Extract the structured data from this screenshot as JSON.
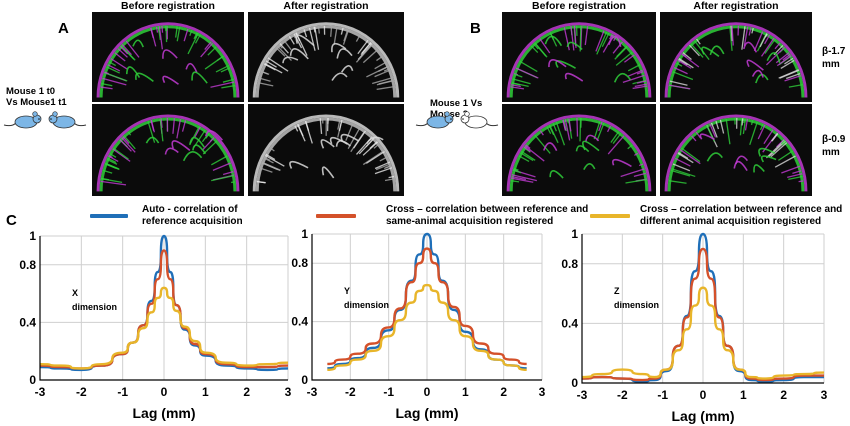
{
  "panels": {
    "a": {
      "letter": "A",
      "before_title": "Before registration",
      "after_title": "After registration",
      "comparison_line1": "Mouse 1 t0",
      "comparison_line2": "Vs Mouse1 t1"
    },
    "b": {
      "letter": "B",
      "before_title": "Before registration",
      "after_title": "After registration",
      "comparison_line1": "Mouse 1 Vs",
      "comparison_line2": "Mouse 2",
      "beta_top_line1": "β-1.7",
      "beta_top_line2": "mm",
      "beta_bottom_line1": "β-0.9",
      "beta_bottom_line2": "mm"
    },
    "c": {
      "letter": "C"
    }
  },
  "legend": [
    {
      "line1": "Auto - correlation of",
      "line2": "reference acquisition",
      "color": "#1f6fb8"
    },
    {
      "line1": "Cross – correlation between reference and",
      "line2": "same-animal acquisition registered",
      "color": "#d4512a"
    },
    {
      "line1": "Cross – correlation between reference and",
      "line2": "different animal acquisition registered",
      "color": "#e8b52a"
    }
  ],
  "colors": {
    "magenta": "#c23bd4",
    "green": "#2fcf3a",
    "grid": "#cfcfcf"
  },
  "chart_data": [
    {
      "type": "line",
      "dimension_line1": "X",
      "dimension_line2": "dimension",
      "xlabel": "Lag (mm)",
      "xlim": [
        -3,
        3
      ],
      "ylim": [
        0,
        1
      ],
      "xticks": [
        "-3",
        "-2",
        "-1",
        "0",
        "1",
        "2",
        "3"
      ],
      "yticks": [
        "0",
        "0.4",
        "0.8",
        "1"
      ],
      "x": [
        -3,
        -2.5,
        -2,
        -1.5,
        -1,
        -0.75,
        -0.5,
        -0.3,
        -0.15,
        0,
        0.15,
        0.3,
        0.5,
        0.75,
        1,
        1.5,
        2,
        2.5,
        3
      ],
      "series": [
        {
          "color": "#1f6fb8",
          "values": [
            0.09,
            0.08,
            0.07,
            0.1,
            0.18,
            0.26,
            0.38,
            0.55,
            0.75,
            1.0,
            0.75,
            0.52,
            0.35,
            0.24,
            0.17,
            0.1,
            0.08,
            0.07,
            0.08
          ]
        },
        {
          "color": "#d4512a",
          "values": [
            0.1,
            0.09,
            0.08,
            0.1,
            0.18,
            0.26,
            0.38,
            0.53,
            0.7,
            0.9,
            0.7,
            0.52,
            0.36,
            0.25,
            0.18,
            0.11,
            0.09,
            0.09,
            0.1
          ]
        },
        {
          "color": "#e8b52a",
          "values": [
            0.11,
            0.1,
            0.08,
            0.11,
            0.19,
            0.26,
            0.36,
            0.47,
            0.57,
            0.64,
            0.57,
            0.48,
            0.37,
            0.27,
            0.19,
            0.12,
            0.1,
            0.11,
            0.12
          ]
        }
      ]
    },
    {
      "type": "line",
      "dimension_line1": "Y",
      "dimension_line2": "dimension",
      "xlabel": "Lag (mm)",
      "xlim": [
        -3,
        3
      ],
      "ylim": [
        0,
        1
      ],
      "xticks": [
        "-3",
        "-2",
        "-1",
        "0",
        "1",
        "2",
        "3"
      ],
      "yticks": [
        "0",
        "0.4",
        "0.8",
        "1"
      ],
      "x": [
        -2.6,
        -2.2,
        -1.8,
        -1.4,
        -1.0,
        -0.7,
        -0.4,
        -0.2,
        0,
        0.2,
        0.4,
        0.7,
        1.0,
        1.4,
        1.8,
        2.2,
        2.6
      ],
      "series": [
        {
          "color": "#1f6fb8",
          "values": [
            0.08,
            0.11,
            0.15,
            0.22,
            0.34,
            0.48,
            0.68,
            0.86,
            1.0,
            0.86,
            0.68,
            0.48,
            0.33,
            0.21,
            0.14,
            0.1,
            0.08
          ]
        },
        {
          "color": "#d4512a",
          "values": [
            0.11,
            0.14,
            0.18,
            0.25,
            0.36,
            0.49,
            0.67,
            0.8,
            0.9,
            0.8,
            0.67,
            0.5,
            0.37,
            0.25,
            0.18,
            0.14,
            0.11
          ]
        },
        {
          "color": "#e8b52a",
          "values": [
            0.07,
            0.1,
            0.14,
            0.2,
            0.3,
            0.41,
            0.53,
            0.61,
            0.65,
            0.61,
            0.53,
            0.41,
            0.3,
            0.2,
            0.14,
            0.1,
            0.07
          ]
        }
      ]
    },
    {
      "type": "line",
      "dimension_line1": "Z",
      "dimension_line2": "dimension",
      "xlabel": "Lag (mm)",
      "xlim": [
        -3,
        3
      ],
      "ylim": [
        0,
        1
      ],
      "xticks": [
        "-3",
        "-2",
        "-1",
        "0",
        "1",
        "2",
        "3"
      ],
      "yticks": [
        "0",
        "0.4",
        "0.8",
        "1"
      ],
      "x": [
        -3,
        -2.5,
        -2,
        -1.5,
        -1.2,
        -0.9,
        -0.6,
        -0.4,
        -0.2,
        0,
        0.2,
        0.4,
        0.6,
        0.9,
        1.2,
        1.5,
        2,
        2.5,
        3
      ],
      "series": [
        {
          "color": "#1f6fb8",
          "values": [
            0.03,
            0.04,
            0.03,
            0.01,
            0.02,
            0.08,
            0.25,
            0.45,
            0.75,
            1.0,
            0.75,
            0.45,
            0.25,
            0.08,
            0.02,
            0.01,
            0.02,
            0.04,
            0.04
          ]
        },
        {
          "color": "#d4512a",
          "values": [
            0.03,
            0.04,
            0.03,
            0.02,
            0.03,
            0.09,
            0.25,
            0.44,
            0.7,
            0.9,
            0.7,
            0.44,
            0.25,
            0.09,
            0.03,
            0.02,
            0.03,
            0.05,
            0.05
          ]
        },
        {
          "color": "#e8b52a",
          "values": [
            0.04,
            0.06,
            0.09,
            0.06,
            0.04,
            0.09,
            0.22,
            0.36,
            0.52,
            0.64,
            0.52,
            0.36,
            0.22,
            0.09,
            0.04,
            0.03,
            0.05,
            0.06,
            0.07
          ]
        }
      ]
    }
  ]
}
